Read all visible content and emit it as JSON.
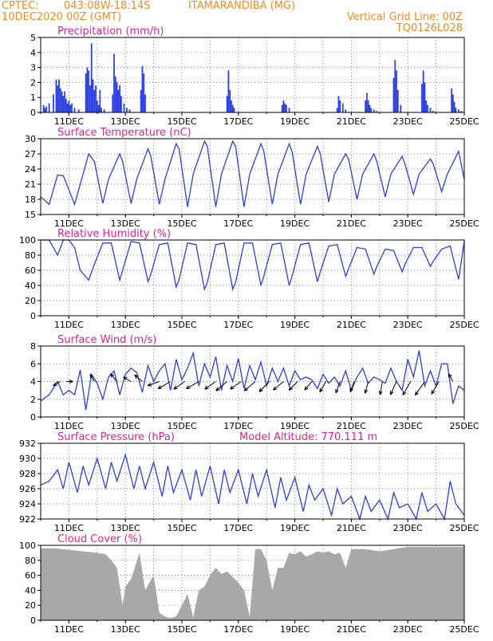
{
  "header": {
    "line1_left": "CPTEC:",
    "coords": "043:08W-18:14S",
    "station": "ITAMARANDIBA (MG)",
    "line2_left": "10DEC2020 00Z (GMT)",
    "grid_note": "Vertical Grid Line: 00Z",
    "model_id": "TQ0126L028"
  },
  "colors": {
    "header": "#f28a1e",
    "title": "#e0209a",
    "series": "#2b3fe0",
    "cloud": "#a8a8a8",
    "grid": "#555555",
    "arrow": "#000000"
  },
  "chart_data": [
    {
      "type": "bar",
      "title": "Precipitation (mm/h)",
      "ylim": [
        0,
        5
      ],
      "yticks": [
        "0",
        "1",
        "2",
        "3",
        "4",
        "5"
      ],
      "xticks": [
        "11DEC",
        "13DEC",
        "15DEC",
        "17DEC",
        "19DEC",
        "21DEC",
        "23DEC",
        "25DEC"
      ],
      "xlim_days": [
        10,
        25
      ],
      "x_days": [
        10.1,
        10.15,
        10.2,
        10.3,
        10.45,
        10.55,
        10.6,
        10.65,
        10.7,
        10.75,
        10.8,
        10.85,
        10.9,
        10.95,
        11.0,
        11.05,
        11.1,
        11.2,
        11.35,
        11.6,
        11.65,
        11.7,
        11.75,
        11.8,
        11.85,
        11.9,
        11.95,
        12.0,
        12.05,
        12.1,
        12.15,
        12.25,
        12.55,
        12.6,
        12.65,
        12.7,
        12.75,
        12.8,
        12.85,
        12.95,
        13.05,
        13.15,
        13.55,
        13.6,
        13.65,
        13.7,
        16.6,
        16.65,
        16.7,
        16.75,
        16.8,
        16.85,
        18.55,
        18.6,
        18.65,
        18.7,
        18.8,
        20.5,
        20.55,
        20.6,
        20.7,
        20.8,
        21.5,
        21.55,
        21.6,
        21.65,
        21.7,
        21.8,
        21.9,
        22.5,
        22.55,
        22.6,
        22.65,
        22.75,
        23.5,
        23.55,
        23.6,
        23.65,
        23.7,
        23.8,
        23.9,
        24.55,
        24.6,
        24.65,
        24.7,
        24.8,
        24.9
      ],
      "values": [
        0.5,
        0.3,
        0.4,
        0.6,
        1.2,
        2.2,
        1.8,
        2.2,
        1.6,
        1.4,
        1.1,
        1.4,
        0.9,
        0.6,
        0.8,
        0.5,
        0.6,
        0.3,
        0.2,
        2.6,
        3.0,
        2.8,
        1.8,
        4.6,
        2.2,
        1.5,
        1.8,
        0.8,
        0.5,
        1.5,
        0.3,
        0.2,
        1.2,
        3.9,
        2.4,
        2.0,
        1.5,
        1.8,
        1.1,
        0.6,
        0.3,
        0.2,
        1.5,
        3.1,
        2.6,
        1.2,
        1.1,
        2.8,
        1.5,
        0.8,
        0.5,
        0.3,
        0.5,
        0.8,
        0.6,
        0.5,
        0.3,
        0.3,
        1.1,
        0.8,
        0.6,
        0.2,
        0.8,
        1.3,
        0.8,
        0.5,
        0.3,
        0.2,
        0.1,
        2.3,
        3.5,
        2.8,
        1.5,
        0.5,
        1.9,
        2.8,
        2.0,
        0.8,
        0.5,
        0.3,
        0.1,
        1.6,
        1.2,
        0.7,
        0.3,
        0.2,
        0.1
      ]
    },
    {
      "type": "line",
      "title": "Surface Temperature (nC)",
      "ylim": [
        15,
        30
      ],
      "yticks": [
        "15",
        "18",
        "21",
        "24",
        "27",
        "30"
      ],
      "xticks": [
        "11DEC",
        "13DEC",
        "15DEC",
        "17DEC",
        "19DEC",
        "21DEC",
        "23DEC",
        "25DEC"
      ],
      "xlim_days": [
        10,
        25
      ],
      "x": [
        10.0,
        10.3,
        10.6,
        10.8,
        11.2,
        11.4,
        11.7,
        11.9,
        12.2,
        12.4,
        12.8,
        12.9,
        13.2,
        13.4,
        13.8,
        13.9,
        14.2,
        14.4,
        14.8,
        14.9,
        15.2,
        15.4,
        15.8,
        15.9,
        16.2,
        16.4,
        16.8,
        16.9,
        17.2,
        17.4,
        17.8,
        17.9,
        18.2,
        18.4,
        18.8,
        18.9,
        19.2,
        19.4,
        19.8,
        19.9,
        20.2,
        20.4,
        20.8,
        20.9,
        21.2,
        21.4,
        21.8,
        21.9,
        22.2,
        22.4,
        22.8,
        22.9,
        23.2,
        23.4,
        23.8,
        23.9,
        24.2,
        24.4,
        24.8,
        25.0
      ],
      "values": [
        18.5,
        17.0,
        22.8,
        22.7,
        17.0,
        21.0,
        27.0,
        25.5,
        17.2,
        22.0,
        27.0,
        25.5,
        17.2,
        22.0,
        28.0,
        26.5,
        17.0,
        22.0,
        29.0,
        28.0,
        16.5,
        23.0,
        29.5,
        28.5,
        16.5,
        23.0,
        29.5,
        28.5,
        16.5,
        23.0,
        29.0,
        27.5,
        17.0,
        23.0,
        29.0,
        27.5,
        17.0,
        23.0,
        28.5,
        27.0,
        17.5,
        23.0,
        27.0,
        26.0,
        18.0,
        23.0,
        27.0,
        25.5,
        18.5,
        23.0,
        26.5,
        25.0,
        19.0,
        23.0,
        26.0,
        25.0,
        19.5,
        23.0,
        27.5,
        22.0
      ]
    },
    {
      "type": "line",
      "title": "Relative Humidity (%)",
      "ylim": [
        0,
        100
      ],
      "yticks": [
        "0",
        "20",
        "40",
        "60",
        "80",
        "100"
      ],
      "xticks": [
        "11DEC",
        "13DEC",
        "15DEC",
        "17DEC",
        "19DEC",
        "21DEC",
        "23DEC",
        "25DEC"
      ],
      "xlim_days": [
        10,
        25
      ],
      "x": [
        10.0,
        10.3,
        10.6,
        10.8,
        11.0,
        11.2,
        11.4,
        11.7,
        11.9,
        12.2,
        12.5,
        12.8,
        12.9,
        13.2,
        13.5,
        13.8,
        13.9,
        14.2,
        14.5,
        14.8,
        14.9,
        15.2,
        15.5,
        15.8,
        15.9,
        16.2,
        16.5,
        16.8,
        16.9,
        17.2,
        17.5,
        17.8,
        17.9,
        18.2,
        18.5,
        18.8,
        18.9,
        19.2,
        19.5,
        19.8,
        19.9,
        20.2,
        20.5,
        20.8,
        20.9,
        21.2,
        21.5,
        21.8,
        21.9,
        22.2,
        22.5,
        22.8,
        22.9,
        23.2,
        23.5,
        23.8,
        23.9,
        24.2,
        24.5,
        24.8,
        25.0
      ],
      "values": [
        100,
        100,
        80,
        100,
        100,
        90,
        60,
        47,
        68,
        96,
        96,
        47,
        60,
        98,
        96,
        45,
        55,
        94,
        96,
        38,
        48,
        96,
        94,
        35,
        44,
        94,
        96,
        35,
        44,
        96,
        96,
        40,
        52,
        94,
        96,
        40,
        52,
        94,
        96,
        45,
        58,
        92,
        94,
        52,
        62,
        90,
        88,
        55,
        65,
        88,
        86,
        58,
        68,
        90,
        90,
        65,
        72,
        88,
        92,
        48,
        98
      ]
    },
    {
      "type": "line",
      "title": "Surface Wind (m/s)",
      "ylim": [
        0,
        8
      ],
      "yticks": [
        "0",
        "2",
        "4",
        "6",
        "8"
      ],
      "xticks": [
        "11DEC",
        "13DEC",
        "15DEC",
        "17DEC",
        "19DEC",
        "21DEC",
        "23DEC",
        "25DEC"
      ],
      "xlim_days": [
        10,
        25
      ],
      "x": [
        10.0,
        10.3,
        10.6,
        10.8,
        11.0,
        11.2,
        11.4,
        11.6,
        11.8,
        12.0,
        12.2,
        12.4,
        12.6,
        12.8,
        13.0,
        13.2,
        13.4,
        13.6,
        13.8,
        14.0,
        14.2,
        14.4,
        14.6,
        14.8,
        15.0,
        15.2,
        15.4,
        15.6,
        15.8,
        16.0,
        16.2,
        16.4,
        16.6,
        16.8,
        17.0,
        17.2,
        17.4,
        17.6,
        17.8,
        18.0,
        18.2,
        18.4,
        18.6,
        18.8,
        19.0,
        19.2,
        19.4,
        19.6,
        19.8,
        20.0,
        20.2,
        20.4,
        20.6,
        20.8,
        21.0,
        21.2,
        21.4,
        21.6,
        21.8,
        22.0,
        22.2,
        22.4,
        22.6,
        22.8,
        23.0,
        23.2,
        23.4,
        23.6,
        23.8,
        24.0,
        24.2,
        24.4,
        24.6,
        24.8,
        25.0
      ],
      "values": [
        1.8,
        2.5,
        4.0,
        2.5,
        3.0,
        2.5,
        5.3,
        0.8,
        4.8,
        3.8,
        2.0,
        4.5,
        5.2,
        2.5,
        4.8,
        5.5,
        5.0,
        2.8,
        5.8,
        4.0,
        5.2,
        6.0,
        3.0,
        6.5,
        4.2,
        5.5,
        7.2,
        3.5,
        6.0,
        4.5,
        6.8,
        3.0,
        5.8,
        4.0,
        6.6,
        3.2,
        5.8,
        4.2,
        6.2,
        3.5,
        5.5,
        4.0,
        5.5,
        3.5,
        5.2,
        4.2,
        4.5,
        4.2,
        3.2,
        4.8,
        3.8,
        4.5,
        3.5,
        5.2,
        3.0,
        4.5,
        5.5,
        3.8,
        4.5,
        4.2,
        3.8,
        5.5,
        4.0,
        3.0,
        6.5,
        4.5,
        7.5,
        3.5,
        5.2,
        3.5,
        6.0,
        6.0,
        1.5,
        3.5,
        3.0
      ],
      "vector_x_days": [
        10.7,
        10.9,
        11.9,
        12.7,
        13.2,
        13.6,
        14.2,
        14.6,
        15.1,
        15.6,
        16.2,
        16.6,
        17.1,
        17.6,
        18.1,
        18.6,
        19.1,
        19.6,
        20.1,
        20.6,
        21.1,
        21.6,
        22.1,
        22.6,
        23.1,
        23.6,
        24.1,
        24.6
      ],
      "vector_angle_deg": [
        210,
        0,
        120,
        130,
        150,
        140,
        200,
        210,
        215,
        210,
        215,
        220,
        215,
        220,
        225,
        220,
        225,
        230,
        240,
        250,
        250,
        255,
        260,
        245,
        240,
        235,
        240,
        120
      ],
      "vector_len_mps": [
        1.5,
        1.2,
        1.5,
        1.8,
        1.6,
        1.8,
        2.2,
        2.6,
        2.4,
        2.6,
        2.4,
        2.6,
        2.4,
        2.6,
        2.6,
        2.4,
        2.2,
        2.0,
        2.2,
        2.2,
        2.0,
        2.2,
        2.4,
        2.6,
        2.8,
        3.0,
        2.6,
        1.6
      ]
    },
    {
      "type": "line",
      "title": "Surface Pressure (hPa)",
      "annotation": "Model Altitude: 770.111 m",
      "ylim": [
        922,
        932
      ],
      "yticks": [
        "922",
        "924",
        "926",
        "928",
        "930",
        "932"
      ],
      "xticks": [
        "11DEC",
        "13DEC",
        "15DEC",
        "17DEC",
        "19DEC",
        "21DEC",
        "23DEC",
        "25DEC"
      ],
      "xlim_days": [
        10,
        25
      ],
      "x": [
        10.0,
        10.3,
        10.6,
        10.8,
        11.0,
        11.3,
        11.5,
        11.7,
        12.0,
        12.3,
        12.5,
        12.7,
        13.0,
        13.3,
        13.5,
        13.7,
        14.0,
        14.3,
        14.5,
        14.7,
        15.0,
        15.3,
        15.5,
        15.7,
        16.0,
        16.3,
        16.5,
        16.7,
        17.0,
        17.3,
        17.5,
        17.7,
        18.0,
        18.3,
        18.5,
        18.7,
        19.0,
        19.3,
        19.5,
        19.7,
        20.0,
        20.3,
        20.5,
        20.7,
        21.0,
        21.3,
        21.5,
        21.7,
        22.0,
        22.3,
        22.5,
        22.7,
        23.0,
        23.3,
        23.5,
        23.7,
        24.0,
        24.3,
        24.5,
        24.7,
        25.0
      ],
      "values": [
        926.5,
        927.0,
        928.5,
        926.0,
        929.5,
        925.5,
        929.0,
        926.5,
        930.0,
        926.0,
        929.5,
        927.0,
        930.5,
        926.0,
        929.0,
        926.0,
        929.5,
        925.0,
        929.0,
        925.5,
        928.5,
        924.5,
        928.5,
        925.0,
        929.0,
        924.0,
        928.5,
        925.5,
        928.5,
        924.0,
        928.0,
        925.0,
        928.5,
        923.5,
        927.5,
        924.5,
        927.5,
        923.0,
        926.5,
        924.5,
        926.0,
        922.5,
        926.0,
        924.0,
        925.0,
        922.0,
        925.0,
        923.0,
        924.5,
        922.0,
        925.5,
        923.5,
        924.0,
        922.0,
        925.5,
        923.0,
        924.0,
        922.0,
        927.0,
        924.0,
        922.5
      ]
    },
    {
      "type": "area",
      "title": "Cloud Cover (%)",
      "ylim": [
        0,
        100
      ],
      "yticks": [
        "0",
        "20",
        "40",
        "60",
        "80",
        "100"
      ],
      "xticks": [
        "11DEC",
        "13DEC",
        "15DEC",
        "17DEC",
        "19DEC",
        "21DEC",
        "23DEC",
        "25DEC"
      ],
      "xlim_days": [
        10,
        25
      ],
      "x": [
        10.0,
        10.5,
        11.0,
        11.5,
        12.0,
        12.3,
        12.5,
        12.7,
        12.9,
        13.0,
        13.2,
        13.5,
        13.7,
        14.0,
        14.2,
        14.4,
        14.6,
        14.8,
        15.0,
        15.2,
        15.4,
        15.6,
        15.8,
        16.0,
        16.2,
        16.4,
        16.6,
        16.8,
        17.0,
        17.2,
        17.4,
        17.6,
        17.8,
        18.0,
        18.2,
        18.4,
        18.6,
        18.8,
        19.0,
        19.2,
        19.4,
        19.6,
        19.8,
        20.0,
        20.2,
        20.4,
        20.6,
        20.8,
        21.0,
        21.5,
        22.0,
        22.5,
        23.0,
        23.5,
        24.0,
        24.5,
        25.0
      ],
      "values": [
        96,
        96,
        94,
        92,
        90,
        88,
        80,
        70,
        20,
        45,
        55,
        90,
        40,
        60,
        10,
        5,
        3,
        5,
        20,
        35,
        4,
        40,
        45,
        60,
        70,
        62,
        65,
        58,
        50,
        40,
        5,
        95,
        95,
        80,
        40,
        70,
        70,
        90,
        88,
        92,
        85,
        88,
        92,
        90,
        92,
        88,
        90,
        70,
        95,
        95,
        92,
        95,
        98,
        98,
        98,
        98,
        98
      ]
    }
  ]
}
